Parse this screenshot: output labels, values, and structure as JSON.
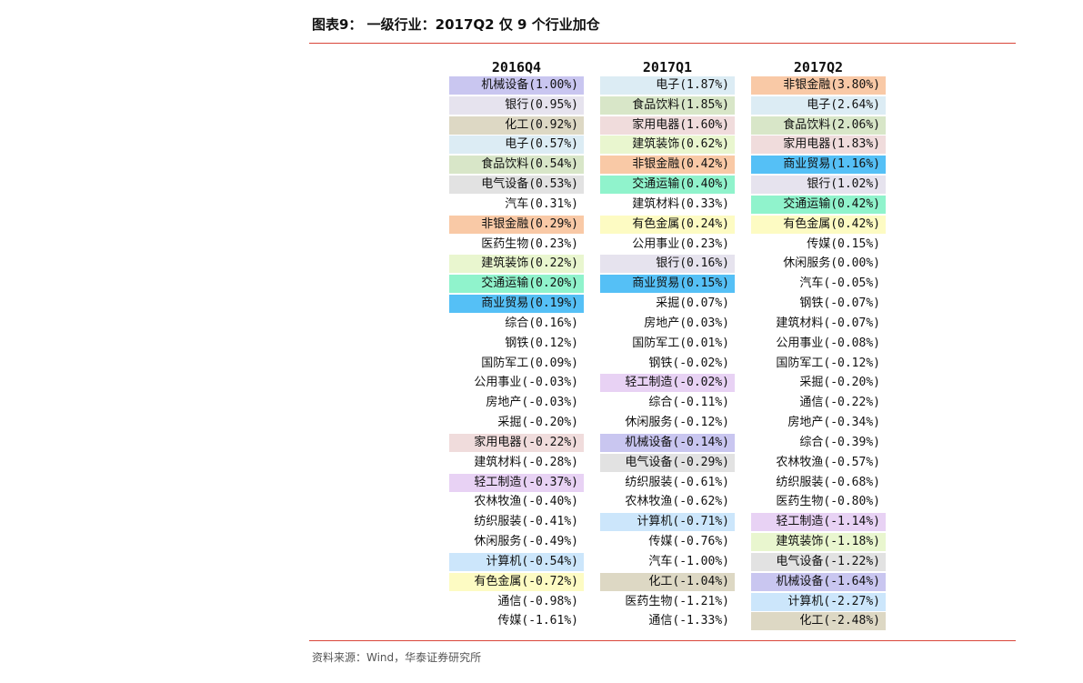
{
  "title": "图表9：  一级行业：2017Q2 仅 9 个行业加仓",
  "source": "资料来源：Wind，华泰证券研究所",
  "colors": {
    "机械设备": "#c9c6f0",
    "银行": "#e6e3ee",
    "化工": "#ddd8c4",
    "电子": "#dcecf4",
    "食品饮料": "#d8e6c8",
    "电气设备": "#e2e2e2",
    "非银金融": "#f9c9a6",
    "建筑装饰": "#e9f6cf",
    "交通运输": "#90f3cc",
    "商业贸易": "#55c0f6",
    "家用电器": "#f0dcdc",
    "轻工制造": "#e8d2f4",
    "计算机": "#cce6fb",
    "有色金属": "#fdfbc3"
  },
  "columns": [
    {
      "header": "2016Q4",
      "rows": [
        {
          "label": "机械设备(1.00%)",
          "industry": "机械设备"
        },
        {
          "label": "银行(0.95%)",
          "industry": "银行"
        },
        {
          "label": "化工(0.92%)",
          "industry": "化工"
        },
        {
          "label": "电子(0.57%)",
          "industry": "电子"
        },
        {
          "label": "食品饮料(0.54%)",
          "industry": "食品饮料"
        },
        {
          "label": "电气设备(0.53%)",
          "industry": "电气设备"
        },
        {
          "label": "汽车(0.31%)",
          "industry": "汽车"
        },
        {
          "label": "非银金融(0.29%)",
          "industry": "非银金融"
        },
        {
          "label": "医药生物(0.23%)",
          "industry": "医药生物"
        },
        {
          "label": "建筑装饰(0.22%)",
          "industry": "建筑装饰"
        },
        {
          "label": "交通运输(0.20%)",
          "industry": "交通运输"
        },
        {
          "label": "商业贸易(0.19%)",
          "industry": "商业贸易"
        },
        {
          "label": "综合(0.16%)",
          "industry": "综合"
        },
        {
          "label": "钢铁(0.12%)",
          "industry": "钢铁"
        },
        {
          "label": "国防军工(0.09%)",
          "industry": "国防军工"
        },
        {
          "label": "公用事业(-0.03%)",
          "industry": "公用事业"
        },
        {
          "label": "房地产(-0.03%)",
          "industry": "房地产"
        },
        {
          "label": "采掘(-0.20%)",
          "industry": "采掘"
        },
        {
          "label": "家用电器(-0.22%)",
          "industry": "家用电器"
        },
        {
          "label": "建筑材料(-0.28%)",
          "industry": "建筑材料"
        },
        {
          "label": "轻工制造(-0.37%)",
          "industry": "轻工制造"
        },
        {
          "label": "农林牧渔(-0.40%)",
          "industry": "农林牧渔"
        },
        {
          "label": "纺织服装(-0.41%)",
          "industry": "纺织服装"
        },
        {
          "label": "休闲服务(-0.49%)",
          "industry": "休闲服务"
        },
        {
          "label": "计算机(-0.54%)",
          "industry": "计算机"
        },
        {
          "label": "有色金属(-0.72%)",
          "industry": "有色金属"
        },
        {
          "label": "通信(-0.98%)",
          "industry": "通信"
        },
        {
          "label": "传媒(-1.61%)",
          "industry": "传媒"
        }
      ]
    },
    {
      "header": "2017Q1",
      "rows": [
        {
          "label": "电子(1.87%)",
          "industry": "电子"
        },
        {
          "label": "食品饮料(1.85%)",
          "industry": "食品饮料"
        },
        {
          "label": "家用电器(1.60%)",
          "industry": "家用电器"
        },
        {
          "label": "建筑装饰(0.62%)",
          "industry": "建筑装饰"
        },
        {
          "label": "非银金融(0.42%)",
          "industry": "非银金融"
        },
        {
          "label": "交通运输(0.40%)",
          "industry": "交通运输"
        },
        {
          "label": "建筑材料(0.33%)",
          "industry": "建筑材料"
        },
        {
          "label": "有色金属(0.24%)",
          "industry": "有色金属"
        },
        {
          "label": "公用事业(0.23%)",
          "industry": "公用事业"
        },
        {
          "label": "银行(0.16%)",
          "industry": "银行"
        },
        {
          "label": "商业贸易(0.15%)",
          "industry": "商业贸易"
        },
        {
          "label": "采掘(0.07%)",
          "industry": "采掘"
        },
        {
          "label": "房地产(0.03%)",
          "industry": "房地产"
        },
        {
          "label": "国防军工(0.01%)",
          "industry": "国防军工"
        },
        {
          "label": "钢铁(-0.02%)",
          "industry": "钢铁"
        },
        {
          "label": "轻工制造(-0.02%)",
          "industry": "轻工制造"
        },
        {
          "label": "综合(-0.11%)",
          "industry": "综合"
        },
        {
          "label": "休闲服务(-0.12%)",
          "industry": "休闲服务"
        },
        {
          "label": "机械设备(-0.14%)",
          "industry": "机械设备"
        },
        {
          "label": "电气设备(-0.29%)",
          "industry": "电气设备"
        },
        {
          "label": "纺织服装(-0.61%)",
          "industry": "纺织服装"
        },
        {
          "label": "农林牧渔(-0.62%)",
          "industry": "农林牧渔"
        },
        {
          "label": "计算机(-0.71%)",
          "industry": "计算机"
        },
        {
          "label": "传媒(-0.76%)",
          "industry": "传媒"
        },
        {
          "label": "汽车(-1.00%)",
          "industry": "汽车"
        },
        {
          "label": "化工(-1.04%)",
          "industry": "化工"
        },
        {
          "label": "医药生物(-1.21%)",
          "industry": "医药生物"
        },
        {
          "label": "通信(-1.33%)",
          "industry": "通信"
        }
      ]
    },
    {
      "header": "2017Q2",
      "rows": [
        {
          "label": "非银金融(3.80%)",
          "industry": "非银金融"
        },
        {
          "label": "电子(2.64%)",
          "industry": "电子"
        },
        {
          "label": "食品饮料(2.06%)",
          "industry": "食品饮料"
        },
        {
          "label": "家用电器(1.83%)",
          "industry": "家用电器"
        },
        {
          "label": "商业贸易(1.16%)",
          "industry": "商业贸易"
        },
        {
          "label": "银行(1.02%)",
          "industry": "银行"
        },
        {
          "label": "交通运输(0.42%)",
          "industry": "交通运输"
        },
        {
          "label": "有色金属(0.42%)",
          "industry": "有色金属"
        },
        {
          "label": "传媒(0.15%)",
          "industry": "传媒"
        },
        {
          "label": "休闲服务(0.00%)",
          "industry": "休闲服务"
        },
        {
          "label": "汽车(-0.05%)",
          "industry": "汽车"
        },
        {
          "label": "钢铁(-0.07%)",
          "industry": "钢铁"
        },
        {
          "label": "建筑材料(-0.07%)",
          "industry": "建筑材料"
        },
        {
          "label": "公用事业(-0.08%)",
          "industry": "公用事业"
        },
        {
          "label": "国防军工(-0.12%)",
          "industry": "国防军工"
        },
        {
          "label": "采掘(-0.20%)",
          "industry": "采掘"
        },
        {
          "label": "通信(-0.22%)",
          "industry": "通信"
        },
        {
          "label": "房地产(-0.34%)",
          "industry": "房地产"
        },
        {
          "label": "综合(-0.39%)",
          "industry": "综合"
        },
        {
          "label": "农林牧渔(-0.57%)",
          "industry": "农林牧渔"
        },
        {
          "label": "纺织服装(-0.68%)",
          "industry": "纺织服装"
        },
        {
          "label": "医药生物(-0.80%)",
          "industry": "医药生物"
        },
        {
          "label": "轻工制造(-1.14%)",
          "industry": "轻工制造"
        },
        {
          "label": "建筑装饰(-1.18%)",
          "industry": "建筑装饰"
        },
        {
          "label": "电气设备(-1.22%)",
          "industry": "电气设备"
        },
        {
          "label": "机械设备(-1.64%)",
          "industry": "机械设备"
        },
        {
          "label": "计算机(-2.27%)",
          "industry": "计算机"
        },
        {
          "label": "化工(-2.48%)",
          "industry": "化工"
        }
      ]
    }
  ]
}
